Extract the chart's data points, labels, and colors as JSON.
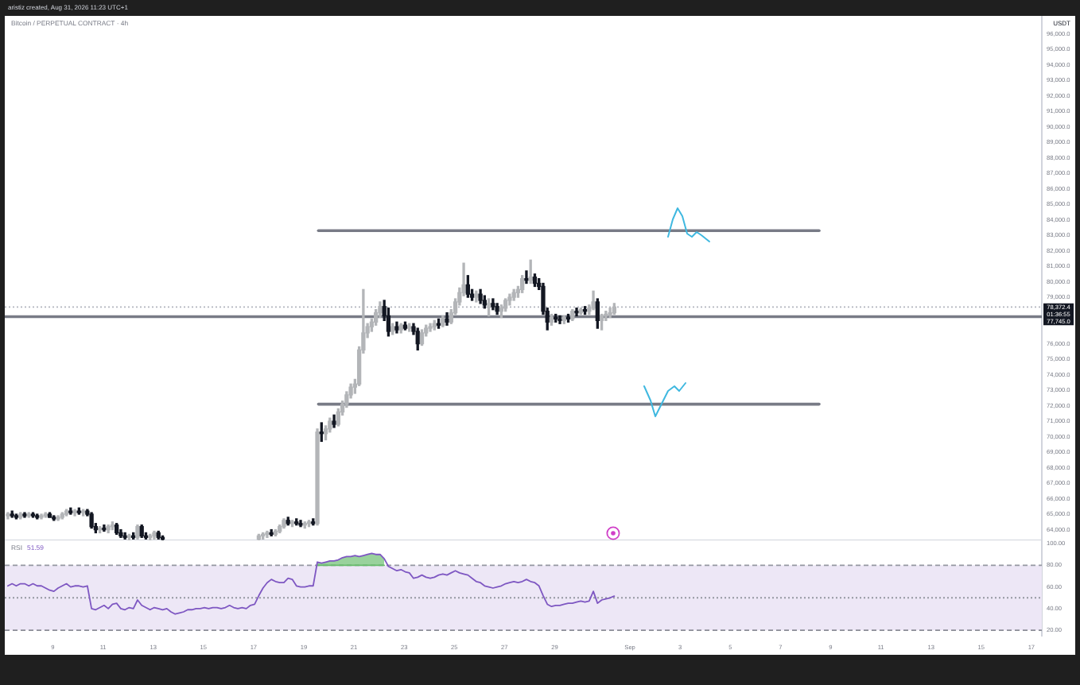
{
  "chart_data": [
    {
      "type": "candlestick",
      "title": "Bitcoin / PERPETUAL CONTRACT · 4h",
      "subtitle": "aristiz created, Aug 31, 2026 11:23 UTC+1",
      "ylabel": "USDT",
      "x": [
        "2026-08-07T05:00",
        "2026-08-07T09:00",
        "2026-08-07T13:00",
        "2026-08-07T17:00",
        "2026-08-07T21:00",
        "2026-08-08T01:00",
        "2026-08-08T05:00",
        "2026-08-08T09:00",
        "2026-08-08T13:00",
        "2026-08-08T17:00",
        "2026-08-08T21:00",
        "2026-08-09T01:00",
        "2026-08-09T05:00",
        "2026-08-09T09:00",
        "2026-08-09T13:00",
        "2026-08-09T17:00",
        "2026-08-09T21:00",
        "2026-08-10T01:00",
        "2026-08-10T05:00",
        "2026-08-10T09:00",
        "2026-08-10T13:00",
        "2026-08-10T17:00",
        "2026-08-10T21:00",
        "2026-08-11T01:00",
        "2026-08-11T05:00",
        "2026-08-11T09:00",
        "2026-08-11T13:00",
        "2026-08-11T17:00",
        "2026-08-11T21:00",
        "2026-08-12T01:00",
        "2026-08-12T05:00",
        "2026-08-12T09:00",
        "2026-08-12T13:00",
        "2026-08-12T17:00",
        "2026-08-12T21:00",
        "2026-08-13T01:00",
        "2026-08-13T05:00",
        "2026-08-13T09:00",
        "2026-08-17T05:00",
        "2026-08-17T09:00",
        "2026-08-17T13:00",
        "2026-08-17T17:00",
        "2026-08-17T21:00",
        "2026-08-18T01:00",
        "2026-08-18T05:00",
        "2026-08-18T09:00",
        "2026-08-18T13:00",
        "2026-08-18T17:00",
        "2026-08-18T21:00",
        "2026-08-19T01:00",
        "2026-08-19T05:00",
        "2026-08-19T09:00",
        "2026-08-19T13:00",
        "2026-08-19T17:00",
        "2026-08-19T21:00",
        "2026-08-20T01:00",
        "2026-08-20T05:00",
        "2026-08-20T09:00",
        "2026-08-20T13:00",
        "2026-08-20T17:00",
        "2026-08-20T21:00",
        "2026-08-21T01:00",
        "2026-08-21T05:00",
        "2026-08-21T09:00",
        "2026-08-21T13:00",
        "2026-08-21T17:00",
        "2026-08-21T21:00",
        "2026-08-22T01:00",
        "2026-08-22T05:00",
        "2026-08-22T09:00",
        "2026-08-22T13:00",
        "2026-08-22T17:00",
        "2026-08-22T21:00",
        "2026-08-23T01:00",
        "2026-08-23T05:00",
        "2026-08-23T09:00",
        "2026-08-23T13:00",
        "2026-08-23T17:00",
        "2026-08-23T21:00",
        "2026-08-24T01:00",
        "2026-08-24T05:00",
        "2026-08-24T09:00",
        "2026-08-24T13:00",
        "2026-08-24T17:00",
        "2026-08-24T21:00",
        "2026-08-25T01:00",
        "2026-08-25T05:00",
        "2026-08-25T09:00",
        "2026-08-25T13:00",
        "2026-08-25T17:00",
        "2026-08-25T21:00",
        "2026-08-26T01:00",
        "2026-08-26T05:00",
        "2026-08-26T09:00",
        "2026-08-26T13:00",
        "2026-08-26T17:00",
        "2026-08-26T21:00",
        "2026-08-27T01:00",
        "2026-08-27T05:00",
        "2026-08-27T09:00",
        "2026-08-27T13:00",
        "2026-08-27T17:00",
        "2026-08-27T21:00",
        "2026-08-28T01:00",
        "2026-08-28T05:00",
        "2026-08-28T09:00",
        "2026-08-28T13:00",
        "2026-08-28T17:00",
        "2026-08-28T21:00",
        "2026-08-29T01:00",
        "2026-08-29T05:00",
        "2026-08-29T09:00",
        "2026-08-29T13:00",
        "2026-08-29T17:00",
        "2026-08-29T21:00",
        "2026-08-30T01:00",
        "2026-08-30T05:00",
        "2026-08-30T09:00",
        "2026-08-30T13:00",
        "2026-08-30T17:00",
        "2026-08-30T21:00",
        "2026-08-31T01:00",
        "2026-08-31T05:00",
        "2026-08-31T09:00"
      ],
      "ohlc": [
        [
          64900,
          65100,
          64700,
          65000
        ],
        [
          65000,
          65200,
          64800,
          64900
        ],
        [
          64900,
          65000,
          64700,
          64800
        ],
        [
          64800,
          65100,
          64700,
          65000
        ],
        [
          65000,
          65100,
          64800,
          64900
        ],
        [
          64900,
          65100,
          64800,
          65000
        ],
        [
          65000,
          65100,
          64800,
          64900
        ],
        [
          64900,
          65000,
          64700,
          64800
        ],
        [
          64800,
          65000,
          64700,
          64900
        ],
        [
          64900,
          65100,
          64800,
          65000
        ],
        [
          65000,
          65100,
          64800,
          64800
        ],
        [
          64800,
          64900,
          64600,
          64700
        ],
        [
          64700,
          64900,
          64600,
          64800
        ],
        [
          64800,
          65100,
          64700,
          65000
        ],
        [
          65000,
          65300,
          64900,
          65200
        ],
        [
          65200,
          65400,
          65000,
          65100
        ],
        [
          65100,
          65300,
          64900,
          65200
        ],
        [
          65200,
          65400,
          65000,
          65100
        ],
        [
          65100,
          65300,
          64900,
          65200
        ],
        [
          65200,
          65300,
          64900,
          65000
        ],
        [
          65000,
          65100,
          64100,
          64200
        ],
        [
          64200,
          64400,
          63800,
          64000
        ],
        [
          64000,
          64200,
          63800,
          64100
        ],
        [
          64100,
          64300,
          63900,
          64000
        ],
        [
          64000,
          64300,
          63800,
          64200
        ],
        [
          64200,
          64500,
          64000,
          64300
        ],
        [
          64300,
          64400,
          63700,
          63800
        ],
        [
          63800,
          64000,
          63500,
          63600
        ],
        [
          63600,
          63800,
          63400,
          63500
        ],
        [
          63500,
          63700,
          63350,
          63600
        ],
        [
          63600,
          63800,
          63400,
          63500
        ],
        [
          63500,
          64300,
          63400,
          64200
        ],
        [
          64200,
          64300,
          63500,
          63600
        ],
        [
          63600,
          63800,
          63400,
          63500
        ],
        [
          63500,
          63700,
          63350,
          63600
        ],
        [
          63600,
          63900,
          63400,
          63800
        ],
        [
          63800,
          63900,
          63400,
          63500
        ],
        [
          63500,
          63600,
          63350,
          63400
        ],
        [
          63400,
          63700,
          63350,
          63600
        ],
        [
          63600,
          63800,
          63400,
          63700
        ],
        [
          63700,
          63900,
          63500,
          63800
        ],
        [
          63800,
          64000,
          63600,
          63700
        ],
        [
          63700,
          64000,
          63600,
          63900
        ],
        [
          63900,
          64300,
          63800,
          64200
        ],
        [
          64200,
          64700,
          64100,
          64600
        ],
        [
          64600,
          64800,
          64300,
          64400
        ],
        [
          64400,
          64600,
          64200,
          64500
        ],
        [
          64500,
          64700,
          64300,
          64400
        ],
        [
          64400,
          64600,
          64200,
          64300
        ],
        [
          64300,
          64500,
          64100,
          64400
        ],
        [
          64400,
          64600,
          64200,
          64500
        ],
        [
          64500,
          64700,
          64300,
          64400
        ],
        [
          64400,
          70500,
          64300,
          70300
        ],
        [
          70300,
          70900,
          69700,
          70200
        ],
        [
          70200,
          70700,
          69800,
          70500
        ],
        [
          70500,
          71200,
          70300,
          71000
        ],
        [
          71000,
          71400,
          70600,
          70800
        ],
        [
          70800,
          71800,
          70700,
          71600
        ],
        [
          71600,
          72300,
          71400,
          72100
        ],
        [
          72100,
          72900,
          71900,
          72700
        ],
        [
          72700,
          73400,
          72500,
          73200
        ],
        [
          73200,
          73700,
          72800,
          73400
        ],
        [
          73400,
          75800,
          73300,
          75600
        ],
        [
          75600,
          79500,
          75400,
          76700
        ],
        [
          76700,
          77300,
          76400,
          77100
        ],
        [
          77100,
          77600,
          76800,
          77400
        ],
        [
          77400,
          78200,
          77200,
          78000
        ],
        [
          78000,
          78700,
          77700,
          78400
        ],
        [
          78400,
          78800,
          77500,
          77800
        ],
        [
          77800,
          78300,
          76500,
          76800
        ],
        [
          76800,
          77300,
          76600,
          77100
        ],
        [
          77100,
          77400,
          76700,
          76900
        ],
        [
          76900,
          77300,
          76700,
          77200
        ],
        [
          77200,
          77400,
          76900,
          77000
        ],
        [
          77000,
          77300,
          76800,
          77100
        ],
        [
          77100,
          77300,
          76600,
          76800
        ],
        [
          76800,
          77000,
          75600,
          76000
        ],
        [
          76000,
          76900,
          75900,
          76700
        ],
        [
          76700,
          77200,
          76500,
          77000
        ],
        [
          77000,
          77300,
          76800,
          77100
        ],
        [
          77100,
          77500,
          76900,
          77300
        ],
        [
          77300,
          77600,
          77000,
          77200
        ],
        [
          77200,
          77800,
          77100,
          77600
        ],
        [
          77600,
          78000,
          77200,
          77400
        ],
        [
          77400,
          78200,
          77300,
          78000
        ],
        [
          78000,
          78900,
          77900,
          78700
        ],
        [
          78700,
          79600,
          78500,
          79300
        ],
        [
          79300,
          81200,
          79100,
          79800
        ],
        [
          79800,
          80400,
          79000,
          79200
        ],
        [
          79200,
          79500,
          78800,
          79000
        ],
        [
          79000,
          79400,
          78700,
          79200
        ],
        [
          79200,
          79500,
          78600,
          78800
        ],
        [
          78800,
          79100,
          78300,
          78500
        ],
        [
          78500,
          78900,
          77800,
          78600
        ],
        [
          78600,
          78900,
          78200,
          78400
        ],
        [
          78400,
          78600,
          77900,
          78100
        ],
        [
          78100,
          78500,
          77700,
          78300
        ],
        [
          78300,
          78900,
          78100,
          78800
        ],
        [
          78800,
          79200,
          78500,
          79000
        ],
        [
          79000,
          79500,
          78800,
          79300
        ],
        [
          79300,
          79700,
          79000,
          79500
        ],
        [
          79500,
          80400,
          79300,
          80200
        ],
        [
          80200,
          80700,
          79900,
          80100
        ],
        [
          80100,
          81400,
          79900,
          80300
        ],
        [
          80300,
          80500,
          79700,
          79900
        ],
        [
          79900,
          80200,
          79500,
          79700
        ],
        [
          79700,
          79900,
          77900,
          78100
        ],
        [
          78100,
          78300,
          76900,
          77400
        ],
        [
          77400,
          77900,
          77200,
          77700
        ],
        [
          77700,
          77900,
          77400,
          77600
        ],
        [
          77600,
          77800,
          77300,
          77500
        ],
        [
          77500,
          77800,
          77300,
          77700
        ],
        [
          77700,
          77900,
          77400,
          77600
        ],
        [
          77600,
          78200,
          77500,
          78100
        ],
        [
          78100,
          78300,
          77800,
          78000
        ],
        [
          78000,
          78300,
          77900,
          78200
        ],
        [
          78200,
          78400,
          77900,
          78100
        ],
        [
          78100,
          78500,
          77900,
          78300
        ],
        [
          78300,
          79400,
          78200,
          78700
        ],
        [
          78700,
          78900,
          77000,
          77500
        ],
        [
          77500,
          77900,
          76900,
          77800
        ],
        [
          77800,
          78100,
          77500,
          77900
        ],
        [
          77900,
          78300,
          77700,
          78000
        ],
        [
          78000,
          78600,
          77900,
          78372.4
        ]
      ],
      "colors": [
        "#b3b5b8",
        "#131722",
        "#131722",
        "#b3b5b8",
        "#131722",
        "#b3b5b8",
        "#131722",
        "#131722",
        "#b3b5b8",
        "#b3b5b8",
        "#131722",
        "#131722",
        "#b3b5b8",
        "#b3b5b8",
        "#b3b5b8",
        "#131722",
        "#b3b5b8",
        "#131722",
        "#b3b5b8",
        "#131722",
        "#131722",
        "#131722",
        "#b3b5b8",
        "#131722",
        "#b3b5b8",
        "#b3b5b8",
        "#131722",
        "#131722",
        "#131722",
        "#b3b5b8",
        "#131722",
        "#b3b5b8",
        "#131722",
        "#131722",
        "#b3b5b8",
        "#b3b5b8",
        "#131722",
        "#131722",
        "#b3b5b8",
        "#b3b5b8",
        "#b3b5b8",
        "#131722",
        "#b3b5b8",
        "#b3b5b8",
        "#b3b5b8",
        "#131722",
        "#b3b5b8",
        "#131722",
        "#131722",
        "#b3b5b8",
        "#b3b5b8",
        "#131722",
        "#b3b5b8",
        "#131722",
        "#b3b5b8",
        "#b3b5b8",
        "#131722",
        "#b3b5b8",
        "#b3b5b8",
        "#b3b5b8",
        "#b3b5b8",
        "#b3b5b8",
        "#b3b5b8",
        "#b3b5b8",
        "#b3b5b8",
        "#b3b5b8",
        "#b3b5b8",
        "#b3b5b8",
        "#131722",
        "#131722",
        "#b3b5b8",
        "#131722",
        "#b3b5b8",
        "#131722",
        "#b3b5b8",
        "#131722",
        "#131722",
        "#b3b5b8",
        "#b3b5b8",
        "#b3b5b8",
        "#b3b5b8",
        "#131722",
        "#b3b5b8",
        "#131722",
        "#b3b5b8",
        "#b3b5b8",
        "#b3b5b8",
        "#b3b5b8",
        "#131722",
        "#131722",
        "#b3b5b8",
        "#131722",
        "#131722",
        "#b3b5b8",
        "#131722",
        "#131722",
        "#b3b5b8",
        "#b3b5b8",
        "#b3b5b8",
        "#b3b5b8",
        "#b3b5b8",
        "#b3b5b8",
        "#131722",
        "#b3b5b8",
        "#131722",
        "#131722",
        "#131722",
        "#131722",
        "#b3b5b8",
        "#131722",
        "#131722",
        "#b3b5b8",
        "#131722",
        "#b3b5b8",
        "#131722",
        "#b3b5b8",
        "#131722",
        "#b3b5b8",
        "#b3b5b8",
        "#131722",
        "#b3b5b8",
        "#b3b5b8",
        "#b3b5b8",
        "#b3b5b8"
      ],
      "series": [
        {
          "type": "line",
          "color": "#787b86",
          "x": [
            "2026-08-19T14:00",
            "2026-09-08T13:00"
          ],
          "values": [
            83300,
            83300
          ]
        },
        {
          "type": "line",
          "color": "#787b86",
          "x": [
            "2026-08-19T14:00",
            "2026-09-08T13:00"
          ],
          "values": [
            72100,
            72100
          ]
        }
      ],
      "xlim": [
        "2026-08-07T02:00",
        "2026-09-17T10:00"
      ],
      "ylim": [
        63310,
        97160
      ],
      "yticks": [
        {
          "value": 64000,
          "label": "64,000.0"
        },
        {
          "value": 65000,
          "label": "65,000.0"
        },
        {
          "value": 66000,
          "label": "66,000.0"
        },
        {
          "value": 67000,
          "label": "67,000.0"
        },
        {
          "value": 68000,
          "label": "68,000.0"
        },
        {
          "value": 69000,
          "label": "69,000.0"
        },
        {
          "value": 70000,
          "label": "70,000.0"
        },
        {
          "value": 71000,
          "label": "71,000.0"
        },
        {
          "value": 72000,
          "label": "72,000.0"
        },
        {
          "value": 73000,
          "label": "73,000.0"
        },
        {
          "value": 74000,
          "label": "74,000.0"
        },
        {
          "value": 75000,
          "label": "75,000.0"
        },
        {
          "value": 76000,
          "label": "76,000.0"
        },
        {
          "value": 79000,
          "label": "79,000.0"
        },
        {
          "value": 80000,
          "label": "80,000.0"
        },
        {
          "value": 81000,
          "label": "81,000.0"
        },
        {
          "value": 82000,
          "label": "82,000.0"
        },
        {
          "value": 83000,
          "label": "83,000.0"
        },
        {
          "value": 84000,
          "label": "84,000.0"
        },
        {
          "value": 85000,
          "label": "85,000.0"
        },
        {
          "value": 86000,
          "label": "86,000.0"
        },
        {
          "value": 87000,
          "label": "87,000.0"
        },
        {
          "value": 88000,
          "label": "88,000.0"
        },
        {
          "value": 89000,
          "label": "89,000.0"
        },
        {
          "value": 90000,
          "label": "90,000.0"
        },
        {
          "value": 91000,
          "label": "91,000.0"
        },
        {
          "value": 92000,
          "label": "92,000.0"
        },
        {
          "value": 93000,
          "label": "93,000.0"
        },
        {
          "value": 94000,
          "label": "94,000.0"
        },
        {
          "value": 95000,
          "label": "95,000.0"
        },
        {
          "value": 96000,
          "label": "96,000.0"
        }
      ],
      "tick_labels": "y",
      "ref_lines": [
        {
          "axis": "y",
          "value": 78372.4,
          "label": "78,372.4",
          "color": "#b2b5be",
          "line_style": "dotted"
        },
        {
          "axis": "y",
          "value": 77745,
          "label": "77,745.0",
          "color": "#787b86"
        }
      ],
      "annotations": [
        "01:36:55"
      ]
    },
    {
      "type": "line",
      "title": "RSI",
      "x": [
        "2026-08-07T05:00",
        "2026-08-07T09:00",
        "2026-08-07T13:00",
        "2026-08-07T17:00",
        "2026-08-07T21:00",
        "2026-08-08T01:00",
        "2026-08-08T05:00",
        "2026-08-08T09:00",
        "2026-08-08T13:00",
        "2026-08-08T17:00",
        "2026-08-08T21:00",
        "2026-08-09T01:00",
        "2026-08-09T05:00",
        "2026-08-09T09:00",
        "2026-08-09T13:00",
        "2026-08-09T17:00",
        "2026-08-09T21:00",
        "2026-08-10T01:00",
        "2026-08-10T05:00",
        "2026-08-10T09:00",
        "2026-08-10T13:00",
        "2026-08-10T17:00",
        "2026-08-10T21:00",
        "2026-08-11T01:00",
        "2026-08-11T05:00",
        "2026-08-11T09:00",
        "2026-08-11T13:00",
        "2026-08-11T17:00",
        "2026-08-11T21:00",
        "2026-08-12T01:00",
        "2026-08-12T05:00",
        "2026-08-12T09:00",
        "2026-08-12T13:00",
        "2026-08-12T17:00",
        "2026-08-12T21:00",
        "2026-08-13T01:00",
        "2026-08-13T05:00",
        "2026-08-13T09:00",
        "2026-08-13T13:00",
        "2026-08-13T17:00",
        "2026-08-13T21:00",
        "2026-08-14T01:00",
        "2026-08-14T05:00",
        "2026-08-14T09:00",
        "2026-08-14T13:00",
        "2026-08-14T17:00",
        "2026-08-14T21:00",
        "2026-08-15T01:00",
        "2026-08-15T05:00",
        "2026-08-15T09:00",
        "2026-08-15T13:00",
        "2026-08-15T17:00",
        "2026-08-15T21:00",
        "2026-08-16T01:00",
        "2026-08-16T05:00",
        "2026-08-16T09:00",
        "2026-08-16T13:00",
        "2026-08-16T17:00",
        "2026-08-16T21:00",
        "2026-08-17T01:00",
        "2026-08-17T05:00",
        "2026-08-17T09:00",
        "2026-08-17T13:00",
        "2026-08-17T17:00",
        "2026-08-17T21:00",
        "2026-08-18T01:00",
        "2026-08-18T05:00",
        "2026-08-18T09:00",
        "2026-08-18T13:00",
        "2026-08-18T17:00",
        "2026-08-18T21:00",
        "2026-08-19T01:00",
        "2026-08-19T05:00",
        "2026-08-19T09:00",
        "2026-08-19T13:00",
        "2026-08-19T17:00",
        "2026-08-19T21:00",
        "2026-08-20T01:00",
        "2026-08-20T05:00",
        "2026-08-20T09:00",
        "2026-08-20T13:00",
        "2026-08-20T17:00",
        "2026-08-20T21:00",
        "2026-08-21T01:00",
        "2026-08-21T05:00",
        "2026-08-21T09:00",
        "2026-08-21T13:00",
        "2026-08-21T17:00",
        "2026-08-21T21:00",
        "2026-08-22T01:00",
        "2026-08-22T05:00",
        "2026-08-22T09:00",
        "2026-08-22T13:00",
        "2026-08-22T17:00",
        "2026-08-22T21:00",
        "2026-08-23T01:00",
        "2026-08-23T05:00",
        "2026-08-23T09:00",
        "2026-08-23T13:00",
        "2026-08-23T17:00",
        "2026-08-23T21:00",
        "2026-08-24T01:00",
        "2026-08-24T05:00",
        "2026-08-24T09:00",
        "2026-08-24T13:00",
        "2026-08-24T17:00",
        "2026-08-24T21:00",
        "2026-08-25T01:00",
        "2026-08-25T05:00",
        "2026-08-25T09:00",
        "2026-08-25T13:00",
        "2026-08-25T17:00",
        "2026-08-25T21:00",
        "2026-08-26T01:00",
        "2026-08-26T05:00",
        "2026-08-26T09:00",
        "2026-08-26T13:00",
        "2026-08-26T17:00",
        "2026-08-26T21:00",
        "2026-08-27T01:00",
        "2026-08-27T05:00",
        "2026-08-27T09:00",
        "2026-08-27T13:00",
        "2026-08-27T17:00",
        "2026-08-27T21:00",
        "2026-08-28T01:00",
        "2026-08-28T05:00",
        "2026-08-28T09:00",
        "2026-08-28T13:00",
        "2026-08-28T17:00",
        "2026-08-28T21:00",
        "2026-08-29T01:00",
        "2026-08-29T05:00",
        "2026-08-29T09:00",
        "2026-08-29T13:00",
        "2026-08-29T17:00",
        "2026-08-29T21:00",
        "2026-08-30T01:00",
        "2026-08-30T05:00",
        "2026-08-30T09:00",
        "2026-08-30T13:00",
        "2026-08-30T17:00",
        "2026-08-30T21:00",
        "2026-08-31T01:00",
        "2026-08-31T05:00",
        "2026-08-31T09:00"
      ],
      "series": [
        {
          "color": "#7e57c2",
          "values": [
            61,
            63,
            61,
            63,
            63,
            61,
            63,
            61,
            61,
            59,
            57,
            56,
            59,
            61,
            63,
            60,
            61,
            61,
            60,
            61,
            40,
            39,
            41,
            43,
            40,
            44,
            45,
            40,
            39,
            41,
            40,
            48,
            43,
            41,
            39,
            41,
            40,
            39,
            40,
            37,
            35,
            36,
            37,
            39,
            39,
            40,
            40,
            41,
            40,
            41,
            41,
            40,
            41,
            43,
            41,
            40,
            41,
            40,
            43,
            44,
            52,
            59,
            64,
            67,
            65,
            64,
            64,
            68,
            67,
            61,
            60,
            60,
            61,
            61,
            83,
            82,
            83,
            84,
            84,
            85,
            87,
            88,
            88,
            89,
            88,
            89,
            90,
            91,
            90,
            90,
            86,
            79,
            77,
            75,
            76,
            74,
            73,
            68,
            69,
            71,
            69,
            68,
            69,
            71,
            72,
            71,
            73,
            75,
            73,
            72,
            71,
            68,
            65,
            64,
            61,
            60,
            59,
            60,
            61,
            63,
            64,
            65,
            64,
            65,
            67,
            65,
            64,
            61,
            52,
            44,
            42,
            43,
            43,
            44,
            45,
            45,
            46,
            47,
            46,
            47,
            56,
            45,
            48,
            49,
            50,
            51.59
          ]
        },
        {
          "color": "#66bb6a",
          "x": [
            "2026-08-19T13:00",
            "2026-08-19T17:00",
            "2026-08-19T21:00",
            "2026-08-20T01:00",
            "2026-08-20T05:00",
            "2026-08-20T09:00",
            "2026-08-20T13:00",
            "2026-08-20T17:00",
            "2026-08-20T21:00",
            "2026-08-21T01:00",
            "2026-08-21T05:00",
            "2026-08-21T09:00",
            "2026-08-21T13:00",
            "2026-08-21T17:00",
            "2026-08-21T21:00",
            "2026-08-22T01:00",
            "2026-08-22T05:00"
          ],
          "values": [
            80,
            80,
            80,
            80,
            80,
            80,
            80,
            80,
            80,
            80,
            80,
            80,
            80,
            80,
            80,
            80,
            80
          ],
          "lower": [
            80,
            80,
            80,
            80,
            80,
            80,
            80,
            80,
            80,
            80,
            80,
            80,
            80,
            80,
            80,
            80,
            80
          ],
          "upper": [
            83,
            82,
            83,
            84,
            84,
            85,
            87,
            88,
            88,
            89,
            88,
            89,
            90,
            91,
            90,
            90,
            86
          ]
        }
      ],
      "xlim": [
        "2026-08-07T02:00",
        "2026-09-17T10:00"
      ],
      "ylim": [
        15,
        103
      ],
      "xticks": [
        {
          "value": "2026-08-09",
          "label": "9"
        },
        {
          "value": "2026-08-11",
          "label": "11"
        },
        {
          "value": "2026-08-13",
          "label": "13"
        },
        {
          "value": "2026-08-15",
          "label": "15"
        },
        {
          "value": "2026-08-17",
          "label": "17"
        },
        {
          "value": "2026-08-19",
          "label": "19"
        },
        {
          "value": "2026-08-21",
          "label": "21"
        },
        {
          "value": "2026-08-23",
          "label": "23"
        },
        {
          "value": "2026-08-25",
          "label": "25"
        },
        {
          "value": "2026-08-27",
          "label": "27"
        },
        {
          "value": "2026-08-29",
          "label": "29"
        },
        {
          "value": "2026-09-01",
          "label": "Sep"
        },
        {
          "value": "2026-09-03",
          "label": "3"
        },
        {
          "value": "2026-09-05",
          "label": "5"
        },
        {
          "value": "2026-09-07",
          "label": "7"
        },
        {
          "value": "2026-09-09",
          "label": "9"
        },
        {
          "value": "2026-09-11",
          "label": "11"
        },
        {
          "value": "2026-09-13",
          "label": "13"
        },
        {
          "value": "2026-09-15",
          "label": "15"
        },
        {
          "value": "2026-09-17",
          "label": "17"
        }
      ],
      "yticks": [
        {
          "value": 100,
          "label": "100.00"
        },
        {
          "value": 80,
          "label": "80.00"
        },
        {
          "value": 60,
          "label": "60.00"
        },
        {
          "value": 40,
          "label": "40.00"
        },
        {
          "value": 20,
          "label": "20.00"
        }
      ],
      "bands": [
        {
          "axis": "y",
          "from": 20,
          "to": 80,
          "color": "#ede7f6"
        }
      ],
      "ref_lines": [
        {
          "axis": "y",
          "value": 80,
          "color": "#9598a1",
          "line_style": "dashed"
        },
        {
          "axis": "y",
          "value": 50,
          "color": "#9598a1",
          "line_style": "dotted"
        },
        {
          "axis": "y",
          "value": 20,
          "color": "#8a8d96",
          "line_style": "dashed"
        }
      ],
      "annotations": [
        "51.59"
      ]
    }
  ]
}
